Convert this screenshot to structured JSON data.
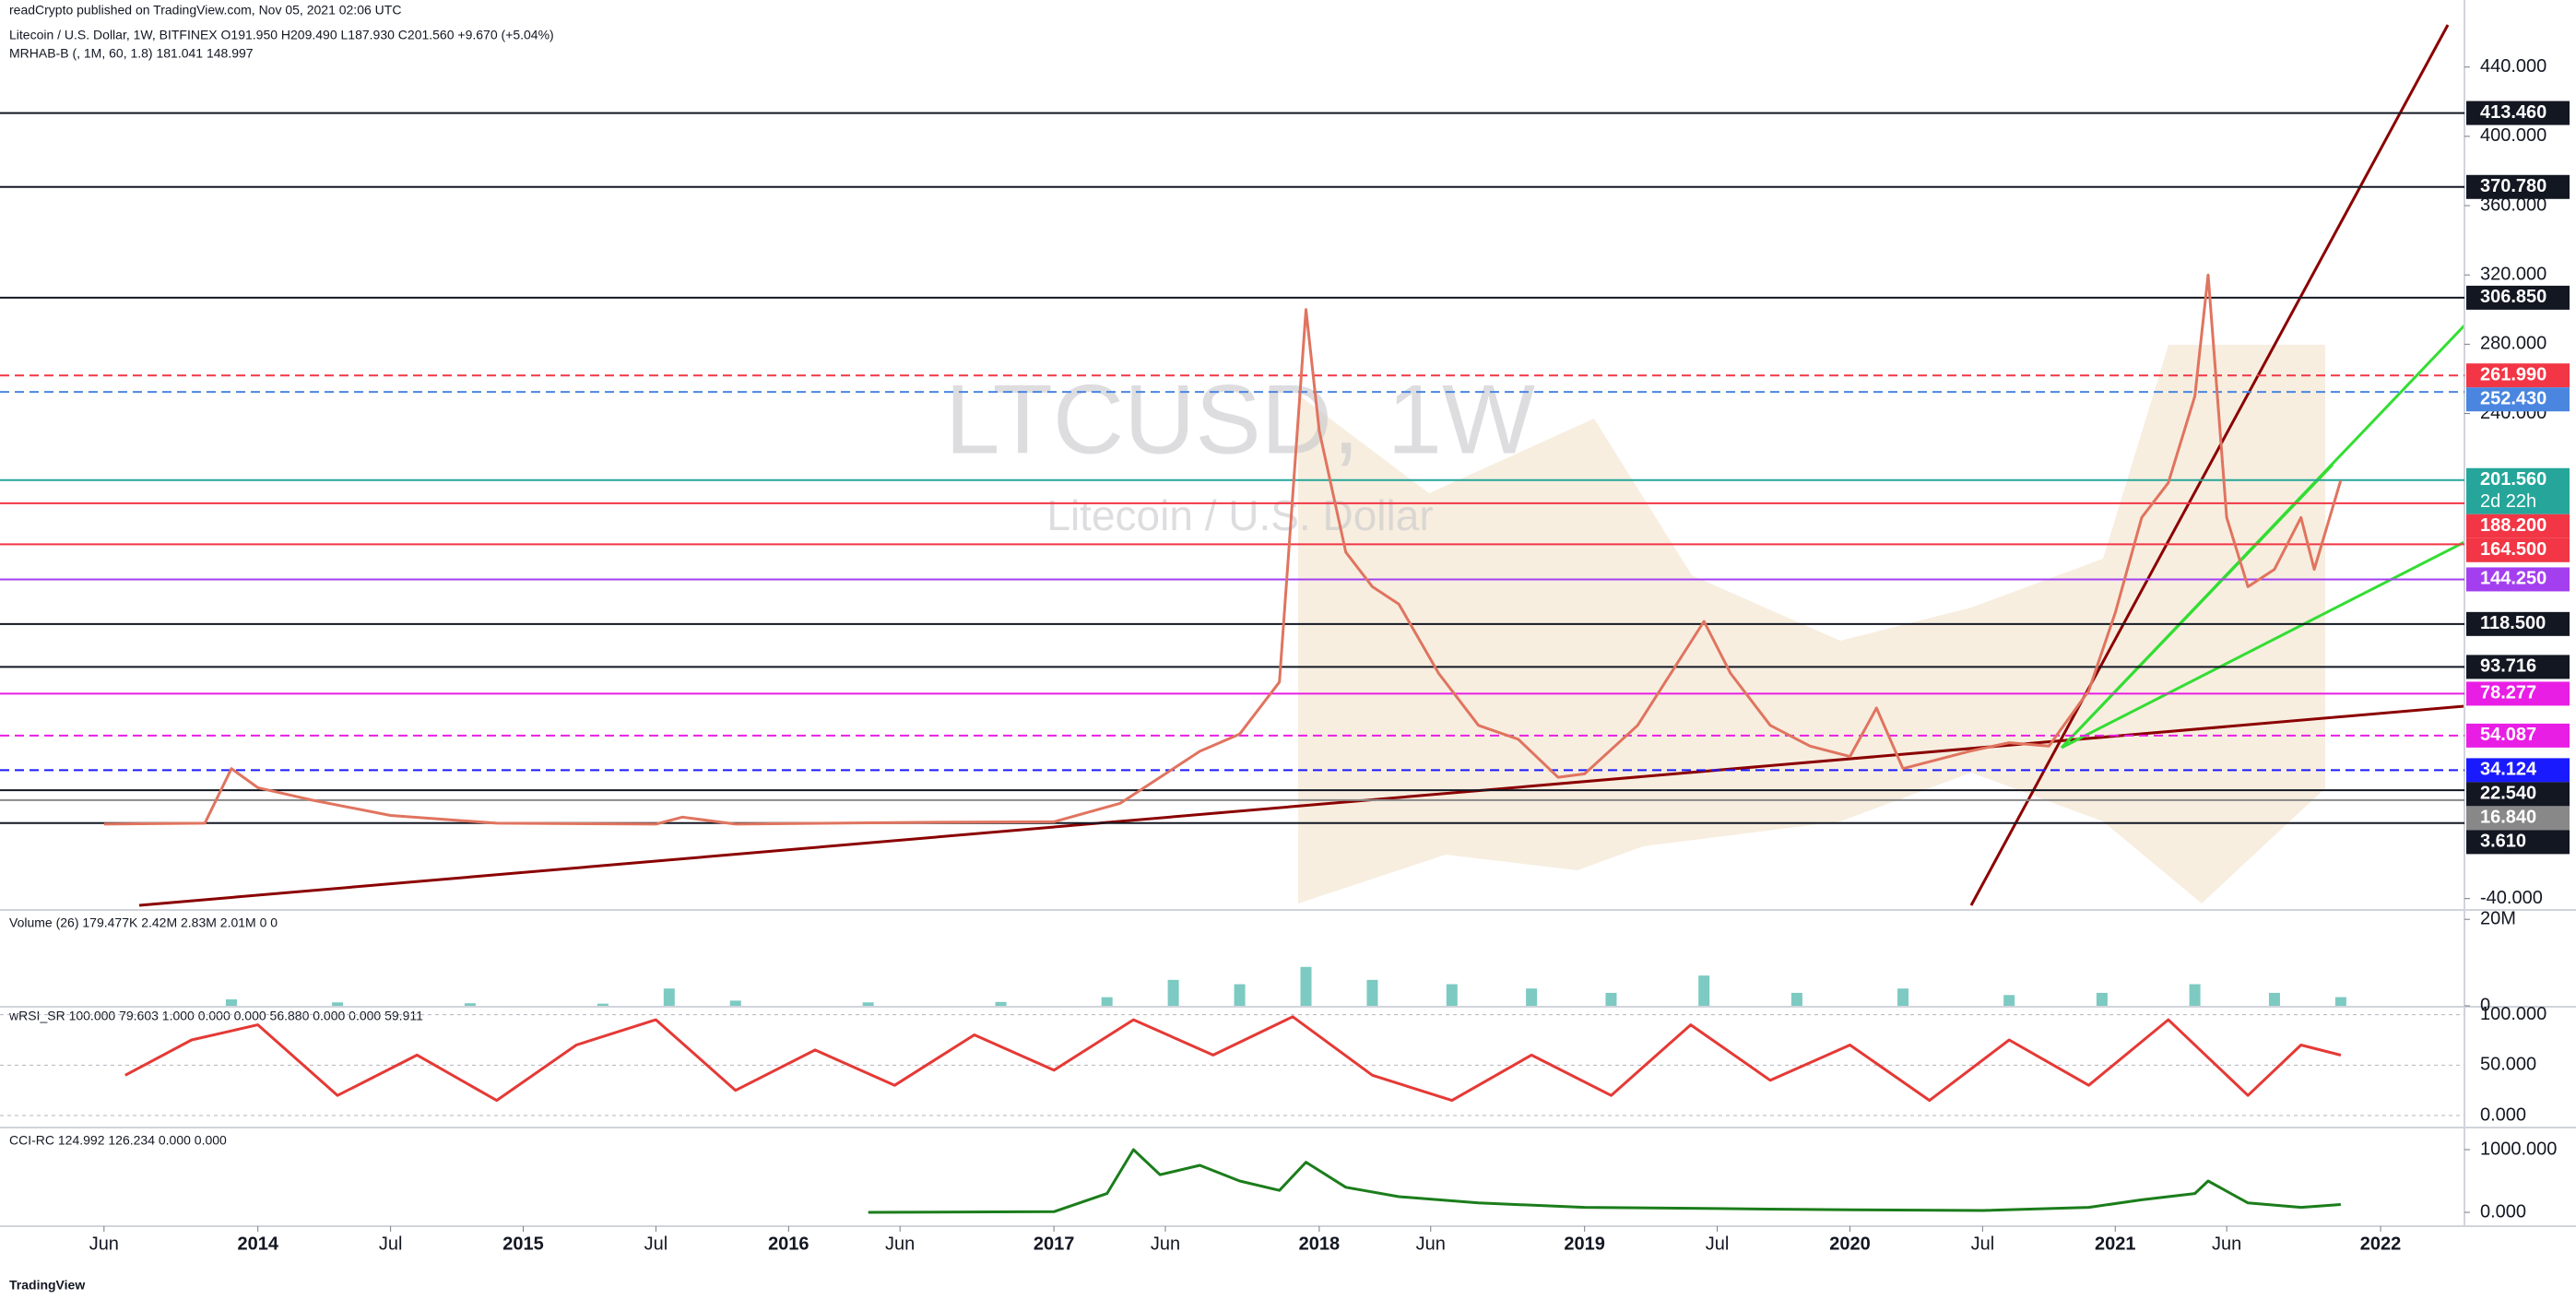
{
  "header": {
    "published": "readCrypto published on TradingView.com, Nov 05, 2021 02:06 UTC"
  },
  "footer": {
    "brand": "TradingView"
  },
  "chart_data": [
    {
      "type": "line",
      "title": "Litecoin / U.S. Dollar, 1W, BITFINEX  O191.950  H209.490  L187.930  C201.560  +9.670 (+5.04%)",
      "indicator": "MRHAB-B (, 1M, 60, 1.8)  181.041  148.997",
      "watermark": "LTCUSD, 1W",
      "watermark_subtitle": "Litecoin / U.S. Dollar",
      "color": "#e0745f",
      "xlim": [
        2013.028,
        2022.316
      ],
      "xticks": [
        {
          "value": 2013.42,
          "label": "Jun"
        },
        2014,
        {
          "value": 2014.5,
          "label": "Jul"
        },
        2015,
        {
          "value": 2015.5,
          "label": "Jul"
        },
        2016,
        {
          "value": 2016.42,
          "label": "Jun"
        },
        2017,
        {
          "value": 2017.42,
          "label": "Jun"
        },
        2018,
        {
          "value": 2018.42,
          "label": "Jun"
        },
        2019,
        {
          "value": 2019.5,
          "label": "Jul"
        },
        2020,
        {
          "value": 2020.5,
          "label": "Jul"
        },
        2021,
        {
          "value": 2021.42,
          "label": "Jun"
        },
        2022
      ],
      "ylim": [
        -45.5,
        478.7
      ],
      "yticks": [
        {
          "value": 440,
          "label": "440.000"
        },
        {
          "value": 400,
          "label": "400.000"
        },
        {
          "value": 360,
          "label": "360.000"
        },
        {
          "value": 320,
          "label": "320.000"
        },
        {
          "value": 280,
          "label": "280.000"
        },
        {
          "value": 240,
          "label": "240.000"
        },
        {
          "value": -40,
          "label": "-40.000"
        }
      ],
      "grid": false,
      "x": [
        2013.42,
        2013.8,
        2013.9,
        2014.0,
        2014.2,
        2014.5,
        2014.9,
        2015.5,
        2015.6,
        2015.8,
        2016.5,
        2017.0,
        2017.25,
        2017.4,
        2017.55,
        2017.7,
        2017.85,
        2017.95,
        2018.0,
        2018.1,
        2018.2,
        2018.3,
        2018.45,
        2018.6,
        2018.75,
        2018.9,
        2019.0,
        2019.2,
        2019.45,
        2019.55,
        2019.7,
        2019.85,
        2020.0,
        2020.1,
        2020.2,
        2020.45,
        2020.6,
        2020.75,
        2020.9,
        2021.0,
        2021.1,
        2021.2,
        2021.3,
        2021.35,
        2021.42,
        2021.5,
        2021.6,
        2021.7,
        2021.75,
        2021.85
      ],
      "values": [
        3,
        3.5,
        35,
        24,
        17,
        8,
        3.5,
        3,
        7,
        3,
        4,
        4.3,
        15,
        30,
        45,
        55,
        85,
        300,
        230,
        160,
        140,
        130,
        90,
        60,
        52,
        30,
        32,
        60,
        120,
        90,
        60,
        48,
        42,
        70,
        35,
        45,
        50,
        48,
        80,
        125,
        180,
        200,
        250,
        320,
        180,
        140,
        150,
        180,
        150,
        201.56
      ],
      "levels": [
        {
          "value": 413.46,
          "label": "413.460",
          "color": "#131722",
          "style": "solid"
        },
        {
          "value": 370.78,
          "label": "370.780",
          "color": "#131722",
          "style": "solid"
        },
        {
          "value": 306.85,
          "label": "306.850",
          "color": "#131722",
          "style": "solid"
        },
        {
          "value": 261.99,
          "label": "261.990",
          "color": "#f23645",
          "style": "dashed"
        },
        {
          "value": 252.43,
          "label": "252.430",
          "color": "#4a86e0",
          "style": "dashed"
        },
        {
          "value": 201.56,
          "label": "201.560",
          "countdown": "2d 22h",
          "color": "#26a69a",
          "style": "solid"
        },
        {
          "value": 188.2,
          "label": "188.200",
          "color": "#f23645",
          "style": "solid"
        },
        {
          "value": 164.5,
          "label": "164.500",
          "color": "#f23645",
          "style": "solid"
        },
        {
          "value": 144.25,
          "label": "144.250",
          "color": "#a43ff0",
          "style": "solid"
        },
        {
          "value": 118.5,
          "label": "118.500",
          "color": "#131722",
          "style": "solid"
        },
        {
          "value": 93.716,
          "label": "93.716",
          "color": "#131722",
          "style": "solid"
        },
        {
          "value": 78.277,
          "label": "78.277",
          "color": "#e91ee5",
          "style": "solid"
        },
        {
          "value": 54.087,
          "label": "54.087",
          "color": "#e91ee5",
          "style": "dashed"
        },
        {
          "value": 34.124,
          "label": "34.124",
          "color": "#1a1aff",
          "style": "dashed"
        },
        {
          "value": 22.54,
          "label": "22.540",
          "color": "#131722",
          "style": "solid"
        },
        {
          "value": 16.84,
          "label": "16.840",
          "color": "#888888",
          "style": "solid"
        },
        {
          "value": 3.61,
          "label": "3.610",
          "color": "#131722",
          "style": "solid"
        }
      ]
    },
    {
      "type": "bar",
      "title": "Volume (26)  179.477K  2.42M  2.83M  2.01M  0  0",
      "color": "#26a69a",
      "xlim": [
        2013.028,
        2022.316
      ],
      "ylim": [
        0,
        21750000
      ],
      "yticks": [
        {
          "value": 20000000,
          "label": "20M"
        },
        0
      ],
      "grid": false,
      "x": [
        2013.9,
        2014.3,
        2014.8,
        2015.3,
        2015.55,
        2015.8,
        2016.3,
        2016.8,
        2017.2,
        2017.45,
        2017.7,
        2017.95,
        2018.2,
        2018.5,
        2018.8,
        2019.1,
        2019.45,
        2019.8,
        2020.2,
        2020.6,
        2020.95,
        2021.3,
        2021.6,
        2021.85
      ],
      "values": [
        1500000,
        800000,
        600000,
        500000,
        4000000,
        1200000,
        800000,
        900000,
        2000000,
        6000000,
        5000000,
        9000000,
        6000000,
        5000000,
        4000000,
        3000000,
        7000000,
        3000000,
        4000000,
        2500000,
        3000000,
        5000000,
        3000000,
        2010000
      ]
    },
    {
      "type": "line",
      "title": "wRSI_SR  100.000  79.603  1.000  0.000  0.000  56.880  0.000  0.000  59.911",
      "color": "#e53935",
      "xlim": [
        2013.028,
        2022.316
      ],
      "ylim": [
        -10,
        107
      ],
      "yticks": [
        {
          "value": 100,
          "label": "100.000"
        },
        {
          "value": 50,
          "label": "50.000"
        },
        {
          "value": 0,
          "label": "0.000"
        }
      ],
      "grid": true,
      "x": [
        2013.5,
        2013.75,
        2014.0,
        2014.3,
        2014.6,
        2014.9,
        2015.2,
        2015.5,
        2015.8,
        2016.1,
        2016.4,
        2016.7,
        2017.0,
        2017.3,
        2017.6,
        2017.9,
        2018.2,
        2018.5,
        2018.8,
        2019.1,
        2019.4,
        2019.7,
        2020.0,
        2020.3,
        2020.6,
        2020.9,
        2021.2,
        2021.5,
        2021.7,
        2021.85
      ],
      "values": [
        40,
        75,
        90,
        20,
        60,
        15,
        70,
        95,
        25,
        65,
        30,
        80,
        45,
        95,
        60,
        98,
        40,
        15,
        60,
        20,
        90,
        35,
        70,
        15,
        75,
        30,
        95,
        20,
        70,
        59.911
      ]
    },
    {
      "type": "line",
      "title": "CCI-RC  124.992  126.234  0.000  0.000",
      "color": "#1b7d1b",
      "xlim": [
        2013.028,
        2022.316
      ],
      "ylim": [
        -191,
        1323
      ],
      "yticks": [
        {
          "value": 1000,
          "label": "1000.000"
        },
        {
          "value": 0,
          "label": "0.000"
        }
      ],
      "grid": false,
      "x": [
        2016.3,
        2017.0,
        2017.2,
        2017.3,
        2017.4,
        2017.55,
        2017.7,
        2017.85,
        2017.95,
        2018.1,
        2018.3,
        2018.6,
        2019.0,
        2019.5,
        2020.0,
        2020.5,
        2020.9,
        2021.1,
        2021.3,
        2021.35,
        2021.5,
        2021.7,
        2021.85
      ],
      "values": [
        0,
        10,
        300,
        1000,
        600,
        750,
        500,
        350,
        800,
        400,
        250,
        150,
        80,
        60,
        40,
        30,
        80,
        200,
        300,
        500,
        150,
        80,
        124.992
      ]
    }
  ]
}
